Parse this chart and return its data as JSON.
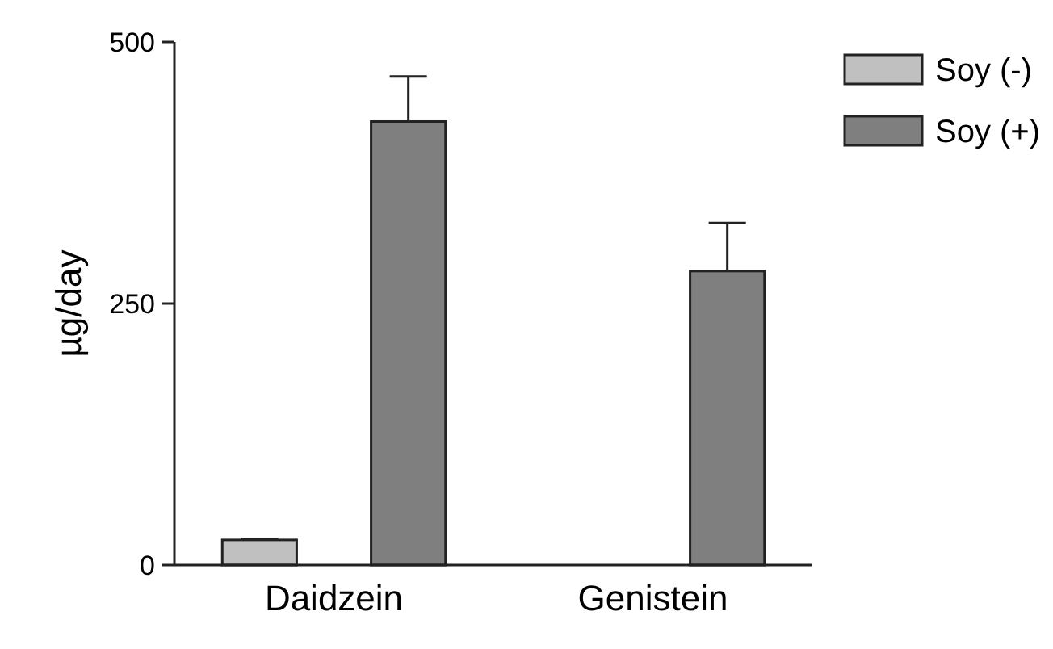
{
  "chart_data": {
    "type": "bar",
    "ylabel": "µg/day",
    "categories": [
      "Daidzein",
      "Genistein"
    ],
    "ylim": [
      0,
      500
    ],
    "yticks": [
      0,
      250,
      500
    ],
    "legend": "top right",
    "grid": false,
    "series": [
      {
        "name": "Soy (-)",
        "color": "#c0c0c0",
        "values": [
          24,
          null
        ],
        "errors": [
          [
            24,
            25
          ],
          null
        ]
      },
      {
        "name": "Soy (+)",
        "color": "#7f7f7f",
        "values": [
          424,
          281
        ],
        "errors": [
          [
            424,
            467
          ],
          [
            281,
            327
          ]
        ]
      }
    ]
  }
}
